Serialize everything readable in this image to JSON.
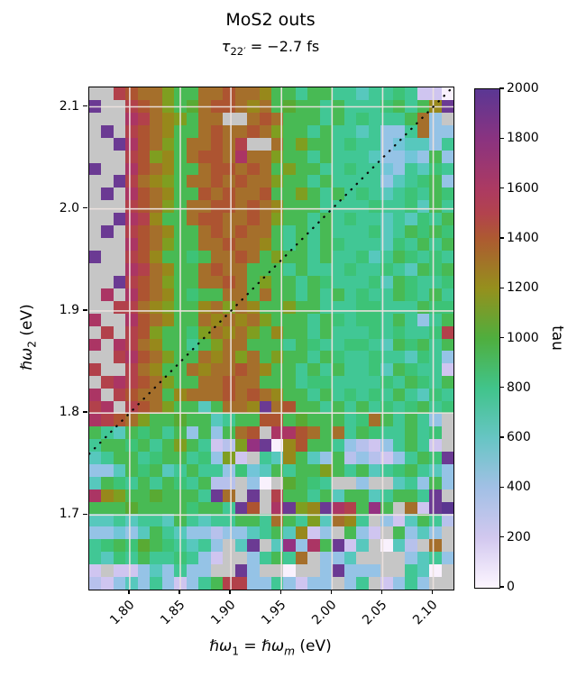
{
  "figure": {
    "title": "MoS2 outs",
    "subtitle": {
      "tau": "τ",
      "sub": "22′",
      "rest": " = −2.7 fs",
      "full": "τ22′ = −2.7 fs"
    },
    "x_label_parts": {
      "hw1": "ℏω",
      "sub1": "1",
      "eq": " = ",
      "hw2": "ℏω",
      "sub2": "m",
      "unit": " (eV)"
    },
    "y_label_parts": {
      "hw": "ℏω",
      "sub": "2",
      "unit": " (eV)"
    }
  },
  "chart_data": {
    "type": "heatmap",
    "title": "MoS2 outs",
    "subtitle": "τ22′ = −2.7 fs",
    "x_axis": {
      "label": "ℏω1 = ℏωm (eV)",
      "range": [
        1.76,
        2.12
      ],
      "ticks": [
        1.8,
        1.85,
        1.9,
        1.95,
        2.0,
        2.05,
        2.1
      ],
      "tick_labels": [
        "1.80",
        "1.85",
        "1.90",
        "1.95",
        "2.00",
        "2.05",
        "2.10"
      ],
      "tick_rotation_deg": 45
    },
    "y_axis": {
      "label": "ℏω2 (eV)",
      "range": [
        1.627,
        2.119
      ],
      "ticks": [
        1.7,
        1.8,
        1.9,
        2.0,
        2.1
      ],
      "tick_labels": [
        "2.1",
        "2.0",
        "1.9",
        "1.8",
        "1.7"
      ]
    },
    "colorbar": {
      "label": "tau",
      "min": 0,
      "max": 2000,
      "ticks": [
        2000,
        1800,
        1600,
        1400,
        1200,
        1000,
        800,
        600,
        400,
        200,
        0
      ],
      "tick_labels": [
        "2000",
        "1800",
        "1600",
        "1400",
        "1200",
        "1000",
        "800",
        "600",
        "400",
        "200",
        "0"
      ],
      "gradient_stops_bottom_to_top": [
        {
          "value": 0,
          "color": "#fdf6ff"
        },
        {
          "value": 200,
          "color": "#d2c8ef"
        },
        {
          "value": 400,
          "color": "#a2c0e5"
        },
        {
          "value": 600,
          "color": "#67c5c4"
        },
        {
          "value": 800,
          "color": "#41c48b"
        },
        {
          "value": 1000,
          "color": "#4fae3e"
        },
        {
          "value": 1200,
          "color": "#95901d"
        },
        {
          "value": 1400,
          "color": "#ad5a31"
        },
        {
          "value": 1500,
          "color": "#b2434d"
        },
        {
          "value": 1600,
          "color": "#ac3a62"
        },
        {
          "value": 1800,
          "color": "#8a3380"
        },
        {
          "value": 2000,
          "color": "#5b3794"
        }
      ]
    },
    "grid_lines": {
      "color": "rgba(236,226,222,0.95)",
      "width": 1.6,
      "x_values": [
        1.8,
        1.85,
        1.9,
        1.95,
        2.0,
        2.05,
        2.1
      ],
      "y_values": [
        1.7,
        1.8,
        1.9,
        2.0,
        2.1
      ]
    },
    "annotations": [
      {
        "type": "line",
        "style": "dotted",
        "color": "#0a0a0a",
        "from_xy": [
          1.76,
          1.76
        ],
        "to_xy": [
          2.119,
          2.119
        ],
        "meaning": "y = x diagonal"
      }
    ],
    "palette": {
      "G": {
        "tau": null,
        "color": "#c6c6c6",
        "meaning": "missing/NaN"
      },
      "w": {
        "tau": 30,
        "color": "#f9f1fd"
      },
      "l": {
        "tau": 200,
        "color": "#cfc5f0"
      },
      "L": {
        "tau": 300,
        "color": "#b7c1ec"
      },
      "b": {
        "tau": 420,
        "color": "#95c3e6"
      },
      "B": {
        "tau": 520,
        "color": "#72c5d8"
      },
      "T": {
        "tau": 620,
        "color": "#57c8bd"
      },
      "t": {
        "tau": 760,
        "color": "#41c795"
      },
      "e": {
        "tau": 860,
        "color": "#3dc377"
      },
      "g": {
        "tau": 960,
        "color": "#48ba54"
      },
      "d": {
        "tau": 1060,
        "color": "#59aa33"
      },
      "Y": {
        "tau": 1160,
        "color": "#7f9e20"
      },
      "O": {
        "tau": 1260,
        "color": "#97881b"
      },
      "o": {
        "tau": 1340,
        "color": "#a56f2b"
      },
      "R": {
        "tau": 1440,
        "color": "#ad5431"
      },
      "r": {
        "tau": 1530,
        "color": "#b2414b"
      },
      "M": {
        "tau": 1640,
        "color": "#ab3564"
      },
      "m": {
        "tau": 1760,
        "color": "#953181"
      },
      "P": {
        "tau": 1900,
        "color": "#6b3a93"
      },
      "V": {
        "tau": 2000,
        "color": "#5a3590"
      }
    },
    "grid": {
      "n_cols": 30,
      "n_rows": 40,
      "cell_size_ev": 0.012,
      "row_order": "top_to_bottom",
      "rows": [
        "GGrRooYggooRooOggtggttTttetllw",
        "PGGrRoYgdoRRoOogdggtgtttegtgOP",
        "GGGMroOYgooGGoRogggtgtetttgobG",
        "GPGrRoOggoRooRoYggtgttTtbbtobb",
        "GGPMRoYgooRorGGogYggtettbBTTbt",
        "GGGrRYOgoRRoMooYggtgtttTbbBbgb",
        "PGGMRoOggoRRoRogYggttettBbtTet",
        "GGProOYgooRoRooYggtgttttbTtegb",
        "GPGMRoOggRoRooRggYgtgtetTtetge",
        "GGGrRoYgooRRoRoOgggttttetteTgt",
        "GGPMrOggoRRooRoYggtgtettTtTetg",
        "GPGrRoOggoRoRoogtgtgttteTtgege",
        "GGGMRoYggooRooOgtgtgetttTetgtg",
        "PGGrROggegooRogYggtgtteTtgetet",
        "GGGMroOggoRoogggtgtttettetTgeg",
        "GGPrRoYggooRogYggtgettteTgette",
        "GMGMRoOgeggoogoggtgtgtettgetgt",
        "GGrroOYggOoYoOggYggttteetttgee",
        "MGGMRoOggoOoOoYgggtgeteetgtbtg",
        "GrGrRYggeYoOoYgOggtgtttetetter",
        "MGMroOggtgYoogggtgetteetTgegtg",
        "GGrMRoYggoOoYogYggtgettettTetb",
        "rGGroOggoOooRoOggtgtgtteTgettl",
        "GrMrRoYggooRoogggteettttetgetg",
        "MGrRoogOoooRoRoOggtgtetetgtTet",
        "rMGrRoYggTgooOPoRggtgtgtetegte",
        "MrRoYggdggTtggRRgdgggteogtgtbG",
        "gtTgegtgbgbgoRGMMRogotgettgteG",
        "tggegtgYgtlLYmPwORggtbLlbtgtlG",
        "TtggteggtebYlGtTOgTbgLbLlbtgeP",
        "bbTgegTtgttbeBTgtggYgtgTtegtTb",
        "TgetgtgetgLLGbwGdgetGGbGGTtbgb",
        "MOYggdgggtPoGPGrggtgTggTtggtPG",
        "gggdggggeggtPRGMPYOPMrgmgGolPV",
        "TTtTttTgtTttggtogtYToOtGblTgtL",
        "bbBbTgtTbbLbbTtgTOlbGgblGgbTbG",
        "tegedgetTtbGTPGTmbMgPlTGwTLGoG",
        "tTetgttetblGGbtgtoGbbTGGGGbTtb",
        "lGllbTbtbbGGPbGGwGGbPbbbGGtTwG",
        "LlbTbtblbtgrrbbtblbbGbtGlbtbGG"
      ]
    }
  }
}
